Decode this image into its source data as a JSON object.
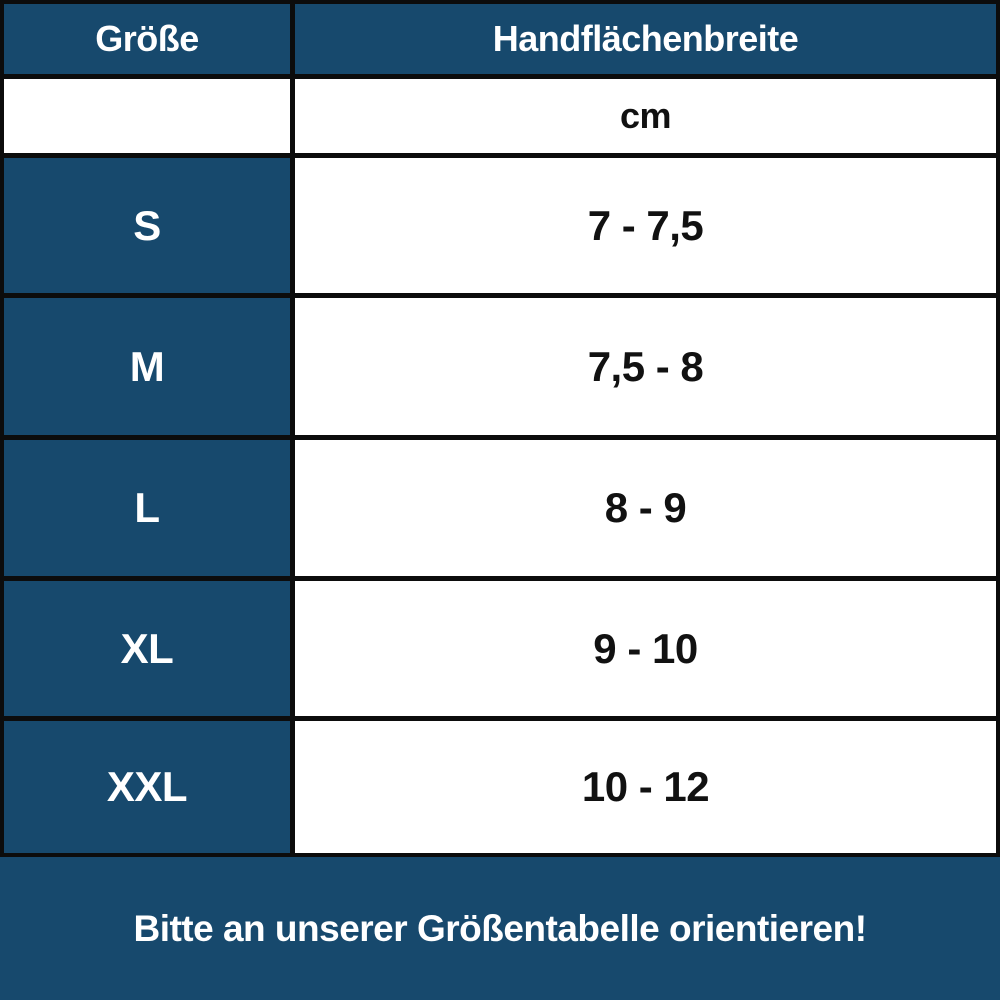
{
  "chart_data": {
    "type": "table",
    "columns": [
      "Größe",
      "Handflächenbreite"
    ],
    "unit_label": "cm",
    "rows": [
      {
        "size": "S",
        "range_cm": "7 - 7,5"
      },
      {
        "size": "M",
        "range_cm": "7,5 - 8"
      },
      {
        "size": "L",
        "range_cm": "8 - 9"
      },
      {
        "size": "XL",
        "range_cm": "9 - 10"
      },
      {
        "size": "XXL",
        "range_cm": "10 - 12"
      }
    ],
    "footer_note": "Bitte an unserer Größentabelle orientieren!"
  },
  "colors": {
    "primary_blue": "#17496d",
    "border_black": "#0c0c0c",
    "cell_white": "#ffffff",
    "text_white": "#ffffff",
    "text_black": "#111111"
  }
}
